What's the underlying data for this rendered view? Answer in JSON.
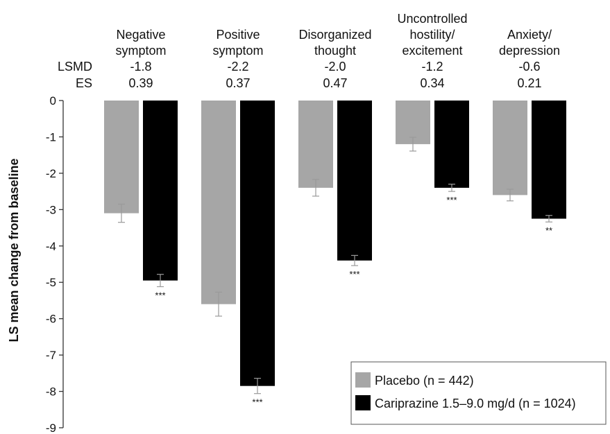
{
  "chart_data": {
    "type": "bar",
    "ylabel": "LS mean change from baseline",
    "ylim": [
      -9,
      0
    ],
    "yticks": [
      "0",
      "-1",
      "-2",
      "-3",
      "-4",
      "-5",
      "-6",
      "-7",
      "-8",
      "-9"
    ],
    "row_labels": {
      "lsmd": "LSMD",
      "es": "ES"
    },
    "categories": [
      {
        "label": [
          "Negative",
          "symptom"
        ],
        "lsmd": "-1.8",
        "es": "0.39"
      },
      {
        "label": [
          "Positive",
          "symptom"
        ],
        "lsmd": "-2.2",
        "es": "0.37"
      },
      {
        "label": [
          "Disorganized",
          "thought"
        ],
        "lsmd": "-2.0",
        "es": "0.47"
      },
      {
        "label": [
          "Uncontrolled",
          "hostility/",
          "excitement"
        ],
        "lsmd": "-1.2",
        "es": "0.34"
      },
      {
        "label": [
          "Anxiety/",
          "depression"
        ],
        "lsmd": "-0.6",
        "es": "0.21"
      }
    ],
    "series": [
      {
        "name": "Placebo (n = 442)",
        "color": "#a6a6a6",
        "values": [
          -3.1,
          -5.6,
          -2.4,
          -1.2,
          -2.6
        ],
        "errors": [
          0.25,
          0.33,
          0.23,
          0.19,
          0.16
        ]
      },
      {
        "name": "Cariprazine 1.5–9.0 mg/d (n = 1024)",
        "color": "#000000",
        "values": [
          -4.95,
          -7.85,
          -4.4,
          -2.4,
          -3.25
        ],
        "errors": [
          0.17,
          0.21,
          0.14,
          0.1,
          0.09
        ]
      }
    ],
    "significance": [
      "***",
      "***",
      "***",
      "***",
      "**"
    ],
    "legend_position": "bottom-right",
    "grid": false
  }
}
